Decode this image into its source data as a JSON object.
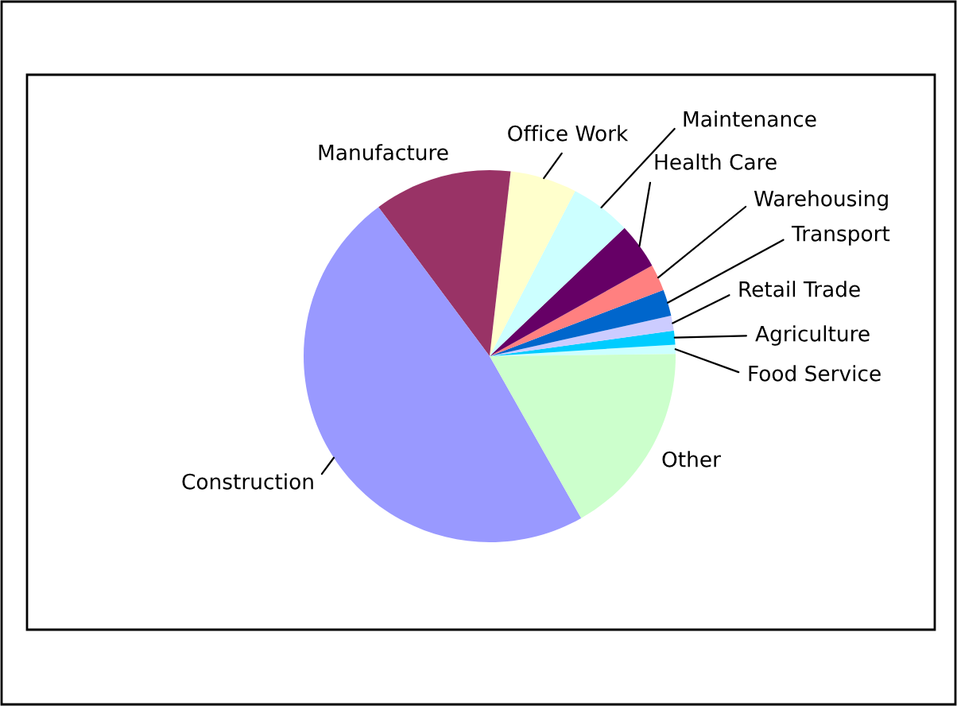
{
  "chart_data": {
    "type": "pie",
    "categories": [
      "Food Service",
      "Agriculture",
      "Retail Trade",
      "Transport",
      "Warehousing",
      "Health Care",
      "Maintenance",
      "Office Work",
      "Manufacture",
      "Construction",
      "Other"
    ],
    "values": [
      0.8,
      1.2,
      1.3,
      2.3,
      2.3,
      4.0,
      5.3,
      5.8,
      12.0,
      48.0,
      17.0
    ],
    "colors": [
      "#ccffff",
      "#00ccff",
      "#ccccff",
      "#0066cc",
      "#ff8080",
      "#660066",
      "#ccffff",
      "#ffffcc",
      "#993366",
      "#9999ff",
      "#ccffcc"
    ],
    "legend": false
  }
}
